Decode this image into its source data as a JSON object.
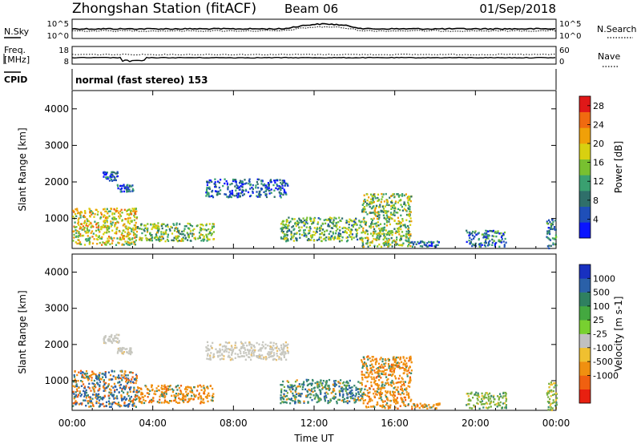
{
  "header": {
    "station": "Zhongshan Station (fitACF)",
    "beam": "Beam 06",
    "date": "01/Sep/2018"
  },
  "status_panels": {
    "nsky_label": "N.Sky",
    "nsky_ticks": [
      "10^5",
      "10^0"
    ],
    "nsearch_label": "N.Search",
    "nsearch_ticks": [
      "10^5",
      "10^0"
    ],
    "freq_label_line1": "Freq.",
    "freq_label_line2": "[MHz]",
    "freq_ticks": [
      "18",
      "8"
    ],
    "nave_label": "Nave",
    "nave_ticks": [
      "60",
      "0"
    ],
    "cpid_label": "CPID",
    "cpid_text": "normal (fast stereo) 153"
  },
  "chart_data": [
    {
      "type": "heatmap",
      "name": "power-panel",
      "xlabel": "Time UT",
      "ylabel": "Slant Range [km]",
      "x_ticks": [
        "00:00",
        "04:00",
        "08:00",
        "12:00",
        "16:00",
        "20:00",
        "00:00"
      ],
      "xlim_hours": [
        0,
        24
      ],
      "y_ticks": [
        1000,
        2000,
        3000,
        4000
      ],
      "ylim_km": [
        180,
        4500
      ],
      "colorbar": {
        "label": "Power [dB]",
        "ticks": [
          "28",
          "24",
          "20",
          "16",
          "12",
          "8",
          "4"
        ],
        "range": [
          0,
          30
        ],
        "colors": [
          "#0a14ff",
          "#1f4fb8",
          "#2f6f6a",
          "#3aa070",
          "#78c030",
          "#d8d010",
          "#f0a008",
          "#f06a10",
          "#e01818"
        ]
      },
      "echo_regions": [
        {
          "t_start": 1.5,
          "t_end": 2.3,
          "r_start": 2050,
          "r_end": 2300,
          "value": 7
        },
        {
          "t_start": 2.2,
          "t_end": 3.0,
          "r_start": 1750,
          "r_end": 1950,
          "value": 6
        },
        {
          "t_start": 6.6,
          "t_end": 10.7,
          "r_start": 1600,
          "r_end": 2100,
          "value": 6
        },
        {
          "t_start": 0.0,
          "t_end": 3.2,
          "r_start": 300,
          "r_end": 1300,
          "value": 18
        },
        {
          "t_start": 3.2,
          "t_end": 7.0,
          "r_start": 400,
          "r_end": 900,
          "value": 14
        },
        {
          "t_start": 10.3,
          "t_end": 14.3,
          "r_start": 400,
          "r_end": 1050,
          "value": 13
        },
        {
          "t_start": 14.3,
          "t_end": 16.8,
          "r_start": 250,
          "r_end": 1700,
          "value": 15
        },
        {
          "t_start": 16.8,
          "t_end": 18.2,
          "r_start": 250,
          "r_end": 400,
          "value": 6
        },
        {
          "t_start": 19.5,
          "t_end": 21.5,
          "r_start": 250,
          "r_end": 700,
          "value": 8
        },
        {
          "t_start": 23.5,
          "t_end": 24.0,
          "r_start": 200,
          "r_end": 1000,
          "value": 10
        }
      ]
    },
    {
      "type": "heatmap",
      "name": "velocity-panel",
      "xlabel": "Time UT",
      "ylabel": "Slant Range [km]",
      "x_ticks": [
        "00:00",
        "04:00",
        "08:00",
        "12:00",
        "16:00",
        "20:00",
        "00:00"
      ],
      "xlim_hours": [
        0,
        24
      ],
      "y_ticks": [
        1000,
        2000,
        3000,
        4000
      ],
      "ylim_km": [
        180,
        4500
      ],
      "colorbar": {
        "label": "Velocity [m s-1]",
        "ticks": [
          "1000",
          "500",
          "100",
          "25",
          "-25",
          "-100",
          "-500",
          "-1000"
        ],
        "colors": [
          "#1830c0",
          "#2a60a8",
          "#2f8060",
          "#44a840",
          "#78d030",
          "#c0c0c0",
          "#f0c030",
          "#f09010",
          "#f06010",
          "#e82010"
        ]
      },
      "echo_regions": [
        {
          "t_start": 1.5,
          "t_end": 2.3,
          "r_start": 2050,
          "r_end": 2300,
          "value": "grey"
        },
        {
          "t_start": 2.2,
          "t_end": 3.0,
          "r_start": 1750,
          "r_end": 1950,
          "value": "grey"
        },
        {
          "t_start": 6.6,
          "t_end": 10.7,
          "r_start": 1600,
          "r_end": 2100,
          "value": "grey"
        },
        {
          "t_start": 0.0,
          "t_end": 3.2,
          "r_start": 300,
          "r_end": 1300,
          "value": "mixed blue/orange"
        },
        {
          "t_start": 3.2,
          "t_end": 7.0,
          "r_start": 400,
          "r_end": 900,
          "value": "orange"
        },
        {
          "t_start": 10.3,
          "t_end": 14.3,
          "r_start": 400,
          "r_end": 1050,
          "value": "green/blue"
        },
        {
          "t_start": 14.3,
          "t_end": 16.8,
          "r_start": 250,
          "r_end": 1700,
          "value": "orange"
        },
        {
          "t_start": 16.8,
          "t_end": 18.2,
          "r_start": 250,
          "r_end": 400,
          "value": "orange"
        },
        {
          "t_start": 19.5,
          "t_end": 21.5,
          "r_start": 250,
          "r_end": 700,
          "value": "green"
        },
        {
          "t_start": 23.5,
          "t_end": 24.0,
          "r_start": 200,
          "r_end": 1000,
          "value": "green"
        }
      ]
    }
  ]
}
